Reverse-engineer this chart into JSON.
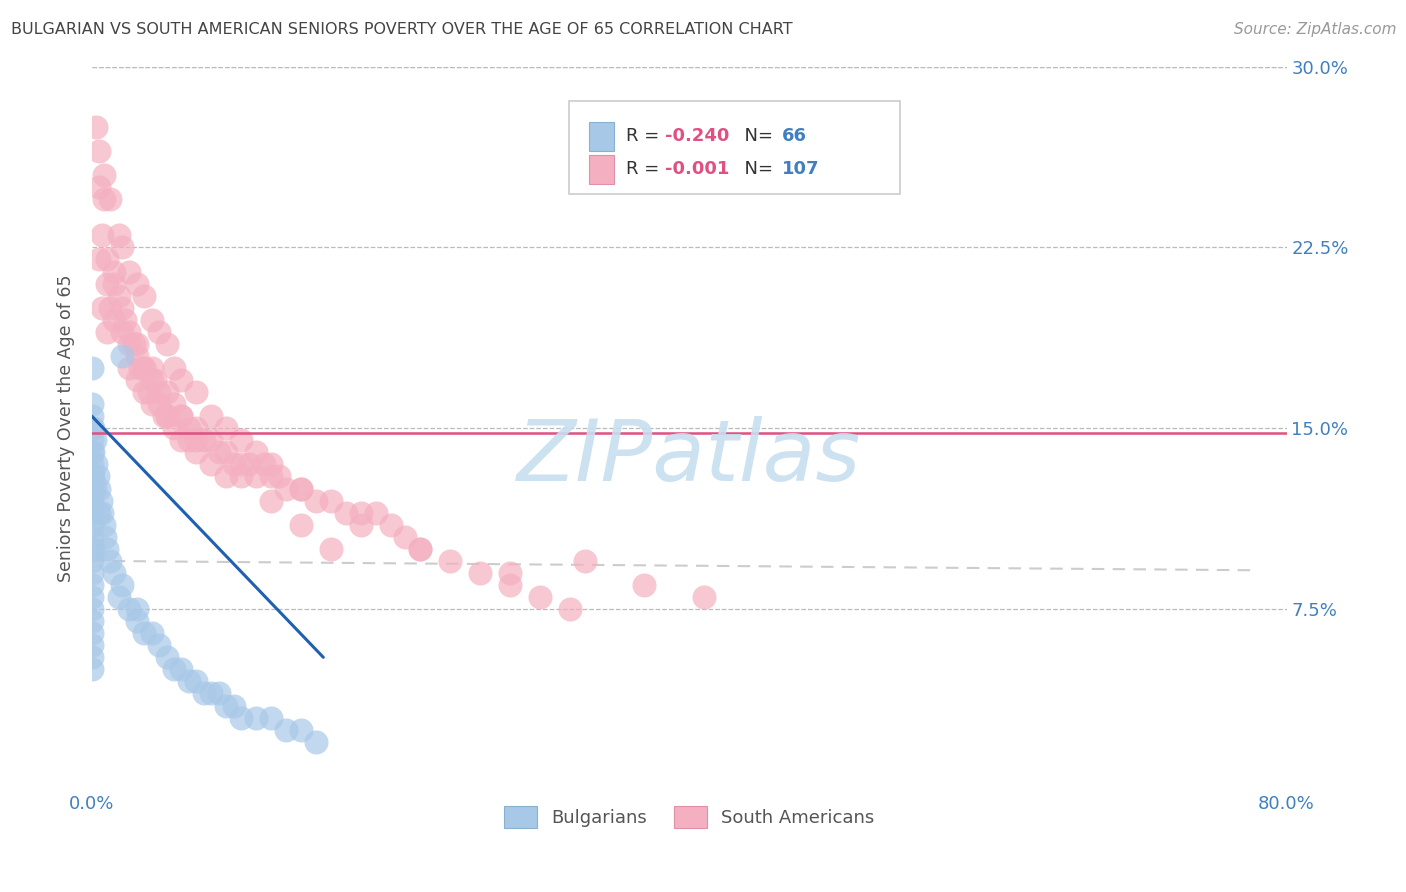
{
  "title": "BULGARIAN VS SOUTH AMERICAN SENIORS POVERTY OVER THE AGE OF 65 CORRELATION CHART",
  "source": "Source: ZipAtlas.com",
  "ylabel": "Seniors Poverty Over the Age of 65",
  "xlabel": "",
  "xlim": [
    0.0,
    0.8
  ],
  "ylim": [
    0.0,
    0.3
  ],
  "xtick_labels": [
    "0.0%",
    "80.0%"
  ],
  "yticks": [
    0.0,
    0.075,
    0.15,
    0.225,
    0.3
  ],
  "ytick_labels": [
    "",
    "7.5%",
    "15.0%",
    "22.5%",
    "30.0%"
  ],
  "mean_line_y": 0.148,
  "mean_line_color": "#e05080",
  "bg_color": "#ffffff",
  "plot_bg_color": "#ffffff",
  "grid_color": "#bbbbbb",
  "watermark_text": "ZIPatlas",
  "watermark_color": "#c8dff0",
  "legend_r1": "R = -0.240",
  "legend_n1": "N =  66",
  "legend_r2": "R = -0.001",
  "legend_n2": "N = 107",
  "bulgarian_color": "#a8c8e8",
  "south_american_color": "#f4b0c0",
  "regression_bulgarian_color": "#2060b0",
  "title_color": "#444444",
  "axis_label_color": "#555555",
  "tick_color": "#4080c0",
  "legend_r_color": "#e05080",
  "legend_n_color": "#4080c0",
  "bulgarians_x": [
    0.0,
    0.0,
    0.0,
    0.0,
    0.0,
    0.0,
    0.0,
    0.0,
    0.0,
    0.0,
    0.0,
    0.0,
    0.0,
    0.0,
    0.0,
    0.0,
    0.0,
    0.0,
    0.0,
    0.0,
    0.0,
    0.0,
    0.0,
    0.0,
    0.001,
    0.001,
    0.001,
    0.001,
    0.002,
    0.002,
    0.003,
    0.004,
    0.005,
    0.005,
    0.006,
    0.007,
    0.008,
    0.009,
    0.01,
    0.012,
    0.015,
    0.018,
    0.02,
    0.025,
    0.03,
    0.03,
    0.035,
    0.04,
    0.045,
    0.05,
    0.055,
    0.06,
    0.065,
    0.07,
    0.075,
    0.08,
    0.085,
    0.09,
    0.095,
    0.1,
    0.11,
    0.12,
    0.13,
    0.14,
    0.15,
    0.02
  ],
  "bulgarians_y": [
    0.175,
    0.16,
    0.155,
    0.15,
    0.145,
    0.14,
    0.135,
    0.13,
    0.125,
    0.12,
    0.115,
    0.11,
    0.105,
    0.1,
    0.095,
    0.09,
    0.085,
    0.08,
    0.075,
    0.07,
    0.065,
    0.06,
    0.055,
    0.05,
    0.15,
    0.14,
    0.13,
    0.1,
    0.145,
    0.125,
    0.135,
    0.13,
    0.125,
    0.115,
    0.12,
    0.115,
    0.11,
    0.105,
    0.1,
    0.095,
    0.09,
    0.08,
    0.085,
    0.075,
    0.075,
    0.07,
    0.065,
    0.065,
    0.06,
    0.055,
    0.05,
    0.05,
    0.045,
    0.045,
    0.04,
    0.04,
    0.04,
    0.035,
    0.035,
    0.03,
    0.03,
    0.03,
    0.025,
    0.025,
    0.02,
    0.18
  ],
  "south_americans_x": [
    0.005,
    0.007,
    0.008,
    0.01,
    0.01,
    0.012,
    0.015,
    0.015,
    0.018,
    0.02,
    0.022,
    0.025,
    0.025,
    0.028,
    0.03,
    0.03,
    0.032,
    0.035,
    0.035,
    0.038,
    0.04,
    0.04,
    0.042,
    0.045,
    0.048,
    0.05,
    0.05,
    0.055,
    0.055,
    0.06,
    0.06,
    0.065,
    0.07,
    0.07,
    0.075,
    0.08,
    0.085,
    0.09,
    0.095,
    0.1,
    0.105,
    0.11,
    0.115,
    0.12,
    0.125,
    0.13,
    0.14,
    0.15,
    0.16,
    0.17,
    0.18,
    0.19,
    0.2,
    0.21,
    0.22,
    0.24,
    0.26,
    0.28,
    0.3,
    0.32,
    0.005,
    0.007,
    0.01,
    0.015,
    0.02,
    0.025,
    0.03,
    0.035,
    0.04,
    0.045,
    0.05,
    0.06,
    0.065,
    0.07,
    0.08,
    0.09,
    0.1,
    0.12,
    0.14,
    0.16,
    0.003,
    0.005,
    0.008,
    0.012,
    0.018,
    0.02,
    0.025,
    0.03,
    0.035,
    0.04,
    0.045,
    0.05,
    0.055,
    0.06,
    0.07,
    0.08,
    0.09,
    0.1,
    0.11,
    0.12,
    0.14,
    0.18,
    0.22,
    0.28,
    0.33,
    0.37,
    0.41
  ],
  "south_americans_y": [
    0.22,
    0.2,
    0.245,
    0.21,
    0.19,
    0.2,
    0.215,
    0.195,
    0.205,
    0.19,
    0.195,
    0.185,
    0.175,
    0.185,
    0.18,
    0.17,
    0.175,
    0.175,
    0.165,
    0.165,
    0.17,
    0.16,
    0.17,
    0.16,
    0.155,
    0.165,
    0.155,
    0.16,
    0.15,
    0.155,
    0.145,
    0.15,
    0.15,
    0.14,
    0.145,
    0.145,
    0.14,
    0.14,
    0.135,
    0.135,
    0.135,
    0.13,
    0.135,
    0.13,
    0.13,
    0.125,
    0.125,
    0.12,
    0.12,
    0.115,
    0.115,
    0.115,
    0.11,
    0.105,
    0.1,
    0.095,
    0.09,
    0.085,
    0.08,
    0.075,
    0.25,
    0.23,
    0.22,
    0.21,
    0.2,
    0.19,
    0.185,
    0.175,
    0.175,
    0.165,
    0.155,
    0.155,
    0.145,
    0.145,
    0.135,
    0.13,
    0.13,
    0.12,
    0.11,
    0.1,
    0.275,
    0.265,
    0.255,
    0.245,
    0.23,
    0.225,
    0.215,
    0.21,
    0.205,
    0.195,
    0.19,
    0.185,
    0.175,
    0.17,
    0.165,
    0.155,
    0.15,
    0.145,
    0.14,
    0.135,
    0.125,
    0.11,
    0.1,
    0.09,
    0.095,
    0.085,
    0.08
  ]
}
